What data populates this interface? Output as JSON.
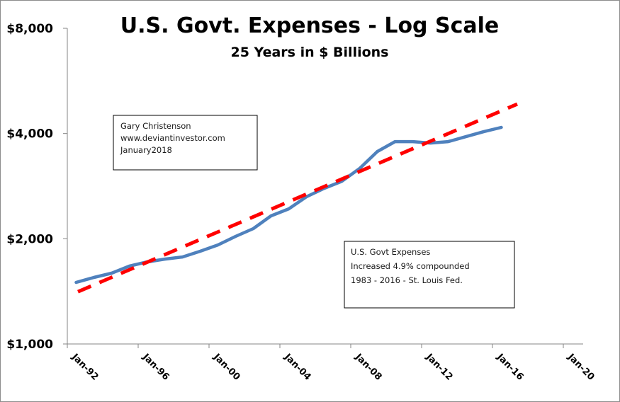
{
  "chart_data": {
    "type": "line",
    "title": "U.S. Govt. Expenses - Log Scale",
    "subtitle": "25 Years in $ Billions",
    "xlabel": "",
    "ylabel": "",
    "y_scale": "log2",
    "ylim": [
      1000,
      8000
    ],
    "xlim": [
      1992,
      2021
    ],
    "grid": false,
    "legend": null,
    "y_ticks": [
      {
        "value": 1000,
        "label": "$1,000"
      },
      {
        "value": 2000,
        "label": "$2,000"
      },
      {
        "value": 4000,
        "label": "$4,000"
      },
      {
        "value": 8000,
        "label": "$8,000"
      }
    ],
    "x_ticks": [
      {
        "value": 1992,
        "label": "Jan-92"
      },
      {
        "value": 1996,
        "label": "Jan-96"
      },
      {
        "value": 2000,
        "label": "Jan-00"
      },
      {
        "value": 2004,
        "label": "Jan-04"
      },
      {
        "value": 2008,
        "label": "Jan-08"
      },
      {
        "value": 2012,
        "label": "Jan-12"
      },
      {
        "value": 2016,
        "label": "Jan-16"
      },
      {
        "value": 2020,
        "label": "Jan-20"
      }
    ],
    "series": [
      {
        "name": "U.S. Govt Expenses",
        "style": "solid",
        "color": "#4f81bd",
        "x": [
          1992.5,
          1993.5,
          1994.5,
          1995.5,
          1996.5,
          1997.5,
          1998.5,
          1999.5,
          2000.5,
          2001.5,
          2002.5,
          2003.5,
          2004.5,
          2005.5,
          2006.5,
          2007.5,
          2008.5,
          2009.5,
          2010.5,
          2011.5,
          2012.5,
          2013.5,
          2014.5,
          2015.5,
          2016.5
        ],
        "values": [
          1500,
          1550,
          1594,
          1670,
          1717,
          1749,
          1774,
          1842,
          1920,
          2031,
          2138,
          2325,
          2435,
          2637,
          2788,
          2921,
          3177,
          3553,
          3793,
          3793,
          3757,
          3793,
          3918,
          4048,
          4164
        ]
      },
      {
        "name": "4.9% compounded trend",
        "style": "dashed",
        "color": "#ff0000",
        "x": [
          1992.6,
          2017.4
        ],
        "values": [
          1411,
          4856
        ]
      }
    ],
    "annotations": [
      {
        "name": "author-note",
        "lines": [
          "Gary Christenson",
          "www.deviantinvestor.com",
          "January2018"
        ]
      },
      {
        "name": "growth-note",
        "lines": [
          "U.S. Govt Expenses",
          "Increased 4.9% compounded",
          "1983 - 2016 - St. Louis Fed."
        ]
      }
    ]
  }
}
